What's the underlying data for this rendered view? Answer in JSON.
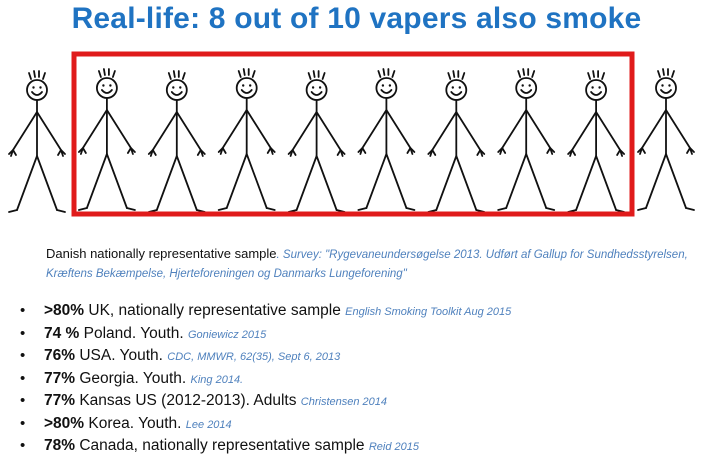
{
  "title": "Real-life: 8 out of 10 vapers also smoke",
  "colors": {
    "title": "#1f73c2",
    "highlight_box": "#e01b1b",
    "citation": "#4f81bd",
    "figure_stroke": "#111111"
  },
  "figure": {
    "total_people": 10,
    "highlighted_people": 8
  },
  "sample": {
    "text": "Danish nationally representative sample",
    "citation": ". Survey: \"Rygevaneundersøgelse 2013. Udført af Gallup for Sundhedsstyrelsen, Kræftens Bekæmpelse, Hjerteforeningen og Danmarks Lungeforening\""
  },
  "bullets": [
    {
      "bullet": "•",
      "pct": ">80%",
      "text": "  UK, nationally representative sample ",
      "cite": "English Smoking Toolkit Aug 2015"
    },
    {
      "bullet": "•",
      "pct": "74 %",
      "text": "  Poland. Youth. ",
      "cite": "Goniewicz 2015"
    },
    {
      "bullet": "•",
      "pct": "76%",
      "text": "  USA. Youth. ",
      "cite": "CDC, MMWR, 62(35), Sept 6, 2013"
    },
    {
      "bullet": "•",
      "pct": "77%",
      "text": "  Georgia. Youth. ",
      "cite": "King 2014."
    },
    {
      "bullet": "•",
      "pct": "77%",
      "text": "  Kansas US (2012-2013). Adults ",
      "cite": "Christensen 2014"
    },
    {
      "bullet": "•",
      "pct": ">80%",
      "text": "  Korea. Youth. ",
      "cite": "Lee 2014"
    },
    {
      "bullet": "•",
      "pct": "78%",
      "text": "  Canada, nationally representative sample ",
      "cite": "Reid 2015"
    }
  ]
}
